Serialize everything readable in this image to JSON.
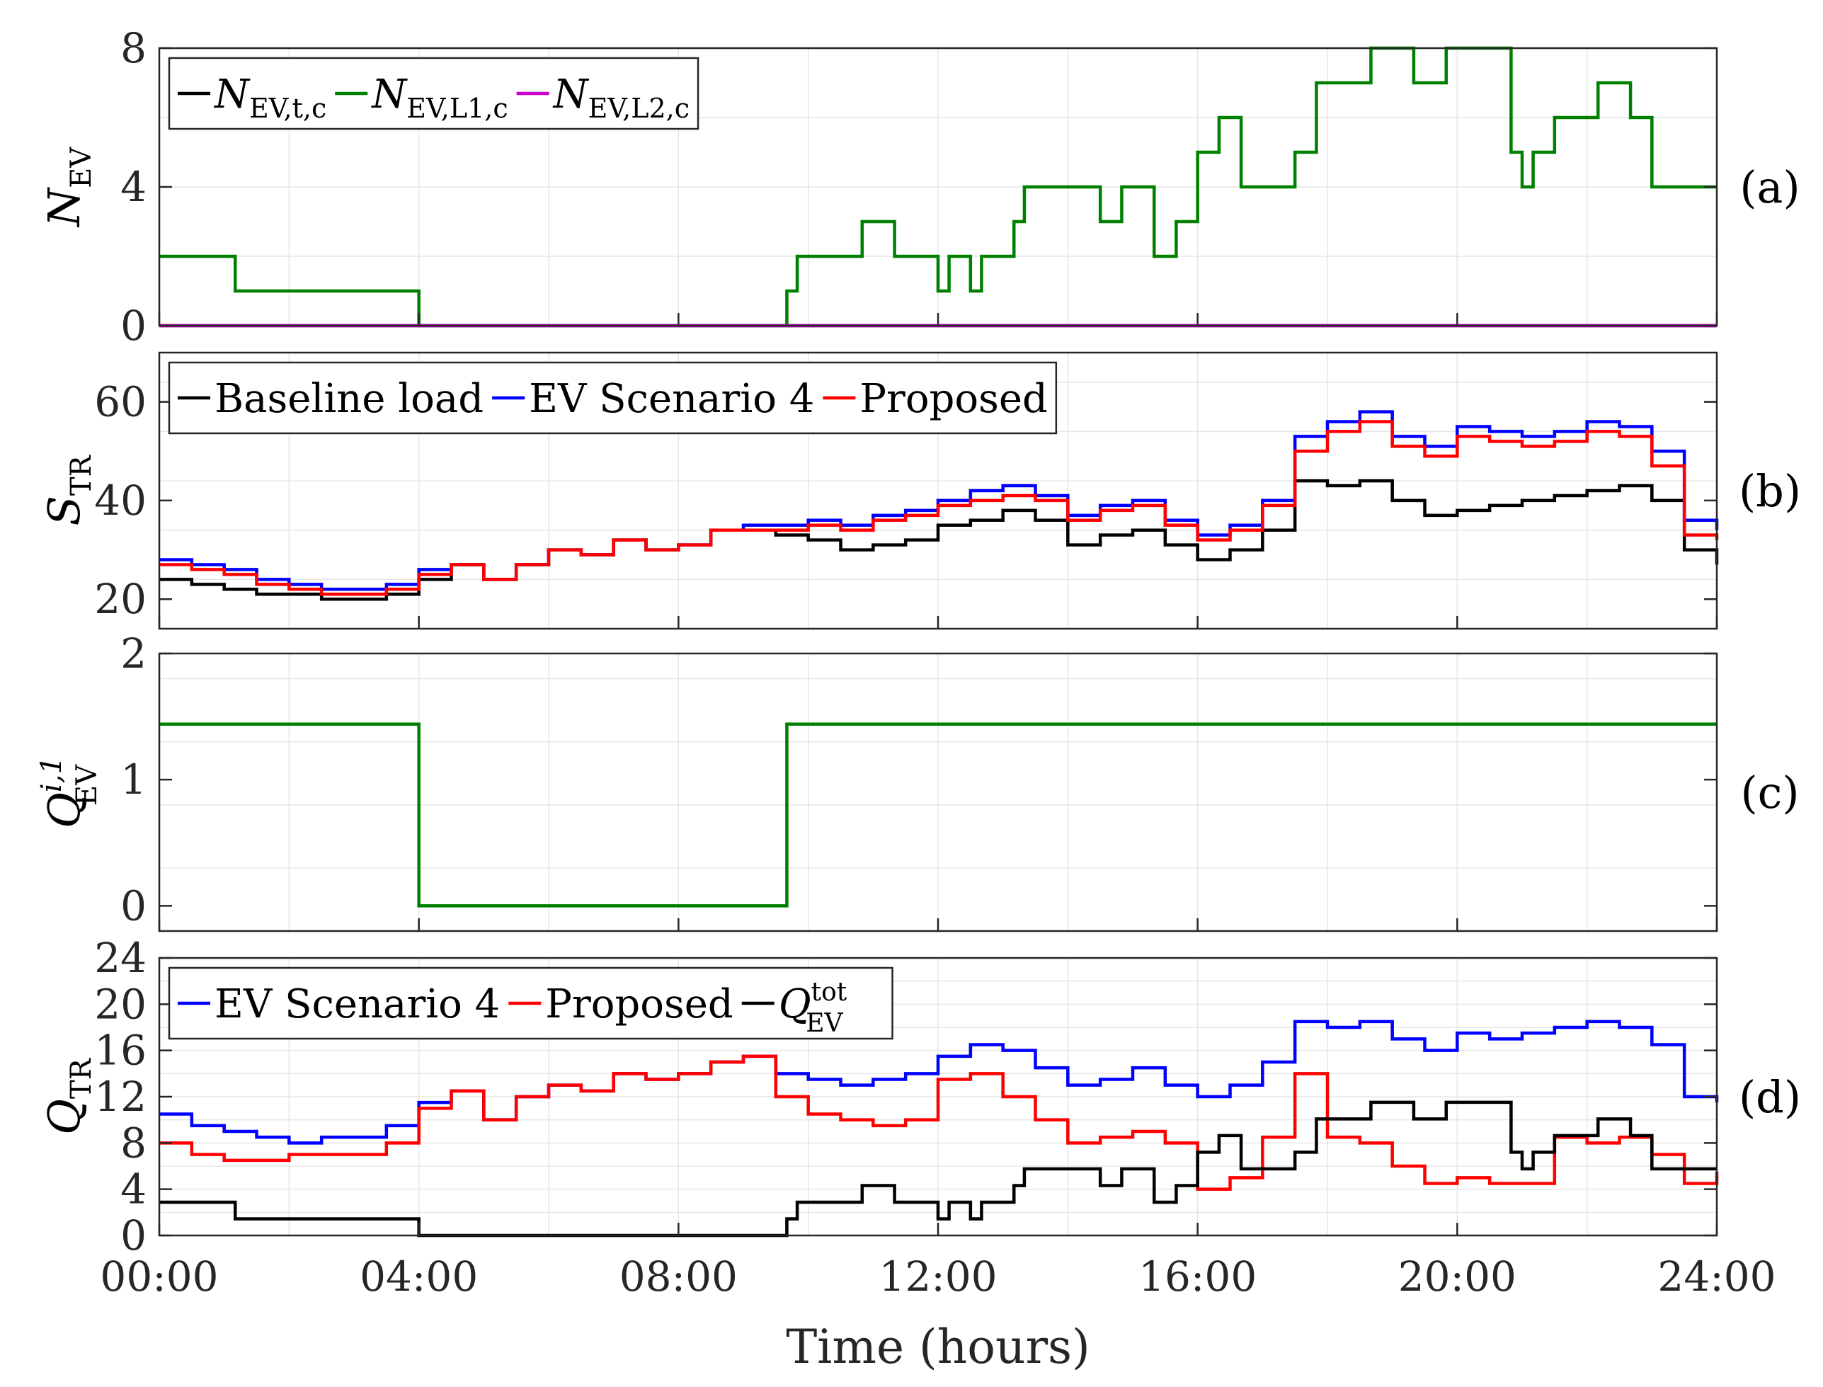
{
  "x_axis": {
    "label": "Time (hours)",
    "ticks": [
      "00:00",
      "04:00",
      "08:00",
      "12:00",
      "16:00",
      "20:00",
      "24:00"
    ],
    "range": [
      0,
      24
    ]
  },
  "chart_data": [
    {
      "id": "a",
      "type": "line",
      "panel_label": "(a)",
      "ylabel": "N_EV",
      "ylabel_main": "N",
      "ylabel_sub": "EV",
      "ylim": [
        0,
        8
      ],
      "yticks": [
        "0",
        "4",
        "8"
      ],
      "grid": true,
      "legend_position": "top-left",
      "series": [
        {
          "name": "N_EV,t,c",
          "main": "N",
          "sub": "EV,t,c",
          "color": "#000000",
          "x": [
            0,
            24
          ],
          "y": [
            0,
            0
          ]
        },
        {
          "name": "N_EV,L1,c",
          "main": "N",
          "sub": "EV,L1,c",
          "color": "#008000",
          "x": [
            0,
            1.17,
            4.0,
            9.67,
            9.83,
            10.83,
            11.33,
            12.0,
            12.17,
            12.5,
            12.67,
            13.17,
            13.33,
            14.5,
            14.83,
            15.33,
            15.67,
            16.0,
            16.33,
            16.67,
            17.5,
            17.83,
            18.67,
            19.33,
            19.83,
            20.83,
            21.0,
            21.17,
            21.5,
            22.17,
            22.67,
            23.0,
            24.0
          ],
          "y": [
            2,
            1,
            0,
            1,
            2,
            3,
            2,
            1,
            2,
            1,
            2,
            3,
            4,
            3,
            4,
            2,
            3,
            5,
            6,
            4,
            5,
            7,
            8,
            7,
            8,
            5,
            4,
            5,
            6,
            7,
            6,
            4,
            4
          ]
        },
        {
          "name": "N_EV,L2,c",
          "main": "N",
          "sub": "EV,L2,c",
          "color": "#cc00cc",
          "x": [
            0,
            24
          ],
          "y": [
            0,
            0
          ]
        }
      ]
    },
    {
      "id": "b",
      "type": "line",
      "panel_label": "(b)",
      "ylabel": "S_TR",
      "ylabel_main": "S",
      "ylabel_sub": "TR",
      "ylim": [
        14,
        70
      ],
      "yticks": [
        "20",
        "40",
        "60"
      ],
      "ytick_values": [
        20,
        40,
        60
      ],
      "grid": true,
      "legend_position": "top-left",
      "series": [
        {
          "name": "Baseline load",
          "color": "#000000",
          "x": [
            0,
            0.5,
            1.0,
            1.5,
            2.0,
            2.5,
            3.0,
            3.5,
            4.0,
            4.5,
            5.0,
            5.5,
            6.0,
            6.5,
            7.0,
            7.5,
            8.0,
            8.5,
            9.0,
            9.5,
            10.0,
            10.5,
            11.0,
            11.5,
            12.0,
            12.5,
            13.0,
            13.5,
            14.0,
            14.5,
            15.0,
            15.5,
            16.0,
            16.5,
            17.0,
            17.5,
            18.0,
            18.5,
            19.0,
            19.5,
            20.0,
            20.5,
            21.0,
            21.5,
            22.0,
            22.5,
            23.0,
            23.5,
            24.0
          ],
          "y": [
            24,
            23,
            22,
            21,
            21,
            20,
            20,
            21,
            24,
            27,
            24,
            27,
            30,
            29,
            32,
            30,
            31,
            34,
            34,
            33,
            32,
            30,
            31,
            32,
            35,
            36,
            38,
            36,
            31,
            33,
            34,
            31,
            28,
            30,
            34,
            44,
            43,
            44,
            40,
            37,
            38,
            39,
            40,
            41,
            42,
            43,
            40,
            30,
            27
          ]
        },
        {
          "name": "EV Scenario 4",
          "color": "#0000ff",
          "x": [
            0,
            0.5,
            1.0,
            1.5,
            2.0,
            2.5,
            3.0,
            3.5,
            4.0,
            4.5,
            5.0,
            5.5,
            6.0,
            6.5,
            7.0,
            7.5,
            8.0,
            8.5,
            9.0,
            9.5,
            10.0,
            10.5,
            11.0,
            11.5,
            12.0,
            12.5,
            13.0,
            13.5,
            14.0,
            14.5,
            15.0,
            15.5,
            16.0,
            16.5,
            17.0,
            17.5,
            18.0,
            18.5,
            19.0,
            19.5,
            20.0,
            20.5,
            21.0,
            21.5,
            22.0,
            22.5,
            23.0,
            23.5,
            24.0
          ],
          "y": [
            28,
            27,
            26,
            24,
            23,
            22,
            22,
            23,
            26,
            27,
            24,
            27,
            30,
            29,
            32,
            30,
            31,
            34,
            35,
            35,
            36,
            35,
            37,
            38,
            40,
            42,
            43,
            41,
            37,
            39,
            40,
            36,
            33,
            35,
            40,
            53,
            56,
            58,
            53,
            51,
            55,
            54,
            53,
            54,
            56,
            55,
            50,
            36,
            34
          ]
        },
        {
          "name": "Proposed",
          "color": "#ff0000",
          "x": [
            0,
            0.5,
            1.0,
            1.5,
            2.0,
            2.5,
            3.0,
            3.5,
            4.0,
            4.5,
            5.0,
            5.5,
            6.0,
            6.5,
            7.0,
            7.5,
            8.0,
            8.5,
            9.0,
            9.5,
            10.0,
            10.5,
            11.0,
            11.5,
            12.0,
            12.5,
            13.0,
            13.5,
            14.0,
            14.5,
            15.0,
            15.5,
            16.0,
            16.5,
            17.0,
            17.5,
            18.0,
            18.5,
            19.0,
            19.5,
            20.0,
            20.5,
            21.0,
            21.5,
            22.0,
            22.5,
            23.0,
            23.5,
            24.0
          ],
          "y": [
            27,
            26,
            25,
            23,
            22,
            21,
            21,
            22,
            25,
            27,
            24,
            27,
            30,
            29,
            32,
            30,
            31,
            34,
            34,
            34,
            35,
            34,
            36,
            37,
            39,
            40,
            41,
            40,
            36,
            38,
            39,
            35,
            32,
            34,
            39,
            50,
            54,
            56,
            51,
            49,
            53,
            52,
            51,
            52,
            54,
            53,
            47,
            33,
            32
          ]
        }
      ]
    },
    {
      "id": "c",
      "type": "line",
      "panel_label": "(c)",
      "ylabel": "Q_EV^i,1",
      "ylabel_main": "Q",
      "ylabel_sub": "EV",
      "ylabel_sup": "i,1",
      "ylim": [
        -0.2,
        2
      ],
      "yticks": [
        "0",
        "1",
        "2"
      ],
      "ytick_values": [
        0,
        1,
        2
      ],
      "grid": true,
      "series": [
        {
          "color": "#008000",
          "x": [
            0,
            4.0,
            9.67,
            24.0
          ],
          "y": [
            1.44,
            0,
            1.44,
            1.44
          ]
        }
      ]
    },
    {
      "id": "d",
      "type": "line",
      "panel_label": "(d)",
      "ylabel": "Q_TR",
      "ylabel_main": "Q",
      "ylabel_sub": "TR",
      "ylim": [
        0,
        24
      ],
      "yticks": [
        "0",
        "4",
        "8",
        "12",
        "16",
        "20",
        "24"
      ],
      "ytick_values": [
        0,
        4,
        8,
        12,
        16,
        20,
        24
      ],
      "grid": true,
      "legend_position": "top-left",
      "series": [
        {
          "name": "EV Scenario 4",
          "color": "#0000ff",
          "x": [
            0,
            0.5,
            1.0,
            1.5,
            2.0,
            2.5,
            3.0,
            3.5,
            4.0,
            4.5,
            5.0,
            5.5,
            6.0,
            6.5,
            7.0,
            7.5,
            8.0,
            8.5,
            9.0,
            9.5,
            10.0,
            10.5,
            11.0,
            11.5,
            12.0,
            12.5,
            13.0,
            13.5,
            14.0,
            14.5,
            15.0,
            15.5,
            16.0,
            16.5,
            17.0,
            17.5,
            18.0,
            18.5,
            19.0,
            19.5,
            20.0,
            20.5,
            21.0,
            21.5,
            22.0,
            22.5,
            23.0,
            23.5,
            24.0
          ],
          "y": [
            10.5,
            9.5,
            9.0,
            8.5,
            8.0,
            8.5,
            8.5,
            9.5,
            11.5,
            12.5,
            10.0,
            12.0,
            13.0,
            12.5,
            14.0,
            13.5,
            14.0,
            15.0,
            15.5,
            14.0,
            13.5,
            13.0,
            13.5,
            14.0,
            15.5,
            16.5,
            16.0,
            14.5,
            13.0,
            13.5,
            14.5,
            13.0,
            12.0,
            13.0,
            15.0,
            18.5,
            18.0,
            18.5,
            17.0,
            16.0,
            17.5,
            17.0,
            17.5,
            18.0,
            18.5,
            18.0,
            16.5,
            12.0,
            11.5
          ]
        },
        {
          "name": "Proposed",
          "color": "#ff0000",
          "x": [
            0,
            0.5,
            1.0,
            1.5,
            2.0,
            2.5,
            3.0,
            3.5,
            4.0,
            4.5,
            5.0,
            5.5,
            6.0,
            6.5,
            7.0,
            7.5,
            8.0,
            8.5,
            9.0,
            9.5,
            10.0,
            10.5,
            11.0,
            11.5,
            12.0,
            12.5,
            13.0,
            13.5,
            14.0,
            14.5,
            15.0,
            15.5,
            16.0,
            16.5,
            17.0,
            17.5,
            18.0,
            18.5,
            19.0,
            19.5,
            20.0,
            20.5,
            21.0,
            21.5,
            22.0,
            22.5,
            23.0,
            23.5,
            24.0
          ],
          "y": [
            8.0,
            7.0,
            6.5,
            6.5,
            7.0,
            7.0,
            7.0,
            8.0,
            11.0,
            12.5,
            10.0,
            12.0,
            13.0,
            12.5,
            14.0,
            13.5,
            14.0,
            15.0,
            15.5,
            12.0,
            10.5,
            10.0,
            9.5,
            10.0,
            13.5,
            14.0,
            12.0,
            10.0,
            8.0,
            8.5,
            9.0,
            8.0,
            4.0,
            5.0,
            8.5,
            14.0,
            8.5,
            8.0,
            6.0,
            4.5,
            5.0,
            4.5,
            4.5,
            8.5,
            8.0,
            8.5,
            7.0,
            4.5,
            5.5
          ]
        },
        {
          "name": "Q_EV^tot",
          "main": "Q",
          "sub": "EV",
          "sup": "tot",
          "color": "#000000",
          "x": [
            0,
            1.17,
            4.0,
            9.67,
            9.83,
            10.83,
            11.33,
            12.0,
            12.17,
            12.5,
            12.67,
            13.17,
            13.33,
            14.5,
            14.83,
            15.33,
            15.67,
            16.0,
            16.33,
            16.67,
            17.5,
            17.83,
            18.67,
            19.33,
            19.83,
            20.83,
            21.0,
            21.17,
            21.5,
            22.17,
            22.67,
            23.0,
            24.0
          ],
          "y": [
            2.88,
            1.44,
            0,
            1.44,
            2.88,
            4.32,
            2.88,
            1.44,
            2.88,
            1.44,
            2.88,
            4.32,
            5.76,
            4.32,
            5.76,
            2.88,
            4.32,
            7.2,
            8.64,
            5.76,
            7.2,
            10.08,
            11.52,
            10.08,
            11.52,
            7.2,
            5.76,
            7.2,
            8.64,
            10.08,
            8.64,
            5.76,
            5.76
          ]
        }
      ]
    }
  ]
}
